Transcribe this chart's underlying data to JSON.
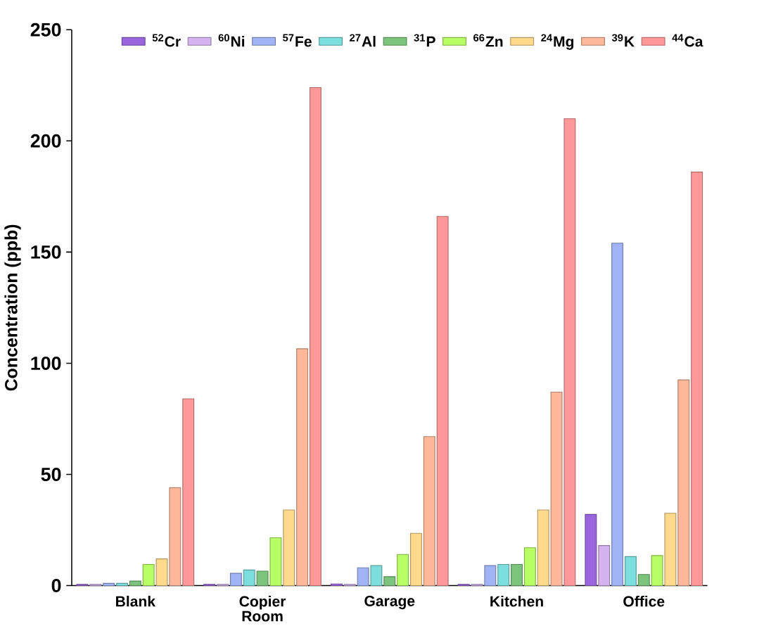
{
  "chart_data": {
    "type": "bar",
    "ylabel": "Concentration (ppb)",
    "categories": [
      "Blank",
      "Copier Room",
      "Garage",
      "Kitchen",
      "Office"
    ],
    "ylim": [
      0,
      250
    ],
    "yticks": [
      0,
      50,
      100,
      150,
      200,
      250
    ],
    "legend": "top right",
    "series": [
      {
        "name": "$^{52}$Cr",
        "color": "#9966dd",
        "values": [
          0.5,
          0.5,
          0.7,
          0.5,
          32
        ]
      },
      {
        "name": "$^{60}$Ni",
        "color": "#d4b3f0",
        "values": [
          0.5,
          0.5,
          0.5,
          0.5,
          18
        ]
      },
      {
        "name": "$^{57}$Fe",
        "color": "#9fb3f5",
        "values": [
          1,
          5.5,
          8,
          9,
          154
        ]
      },
      {
        "name": "$^{27}$Al",
        "color": "#7ddede",
        "values": [
          1,
          7,
          9,
          9.5,
          13
        ]
      },
      {
        "name": "$^{31}$P",
        "color": "#7cc47c",
        "values": [
          2,
          6.5,
          4,
          9.5,
          5
        ]
      },
      {
        "name": "$^{66}$Zn",
        "color": "#b8ff66",
        "values": [
          9.5,
          21.5,
          14,
          17,
          13.5
        ]
      },
      {
        "name": "$^{24}$Mg",
        "color": "#ffd98c",
        "values": [
          12,
          34,
          23.5,
          34,
          32.5
        ]
      },
      {
        "name": "$^{39}$K",
        "color": "#ffb899",
        "values": [
          44,
          106.5,
          67,
          87,
          92.5
        ]
      },
      {
        "name": "$^{44}$Ca",
        "color": "#ff9999",
        "values": [
          84,
          224,
          166,
          210,
          186
        ]
      }
    ]
  }
}
